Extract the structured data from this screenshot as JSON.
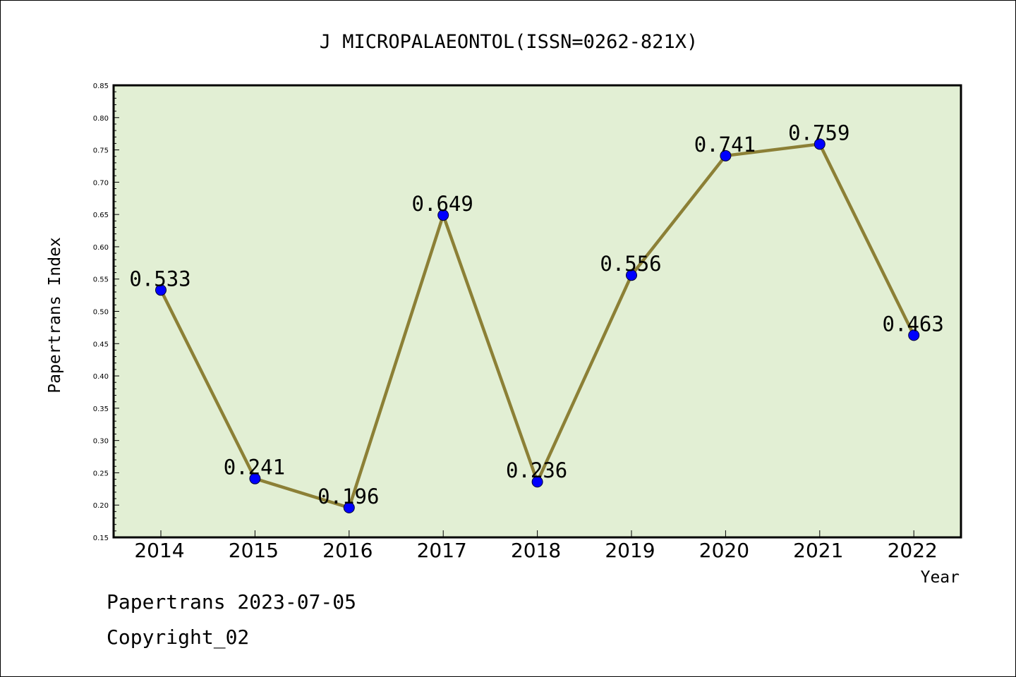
{
  "chart_data": {
    "type": "line",
    "title": "J MICROPALAEONTOL(ISSN=0262-821X)",
    "xlabel": "Year",
    "ylabel": "Papertrans Index",
    "categories": [
      "2014",
      "2015",
      "2016",
      "2017",
      "2018",
      "2019",
      "2020",
      "2021",
      "2022"
    ],
    "values": [
      0.533,
      0.241,
      0.196,
      0.649,
      0.236,
      0.556,
      0.741,
      0.759,
      0.463
    ],
    "data_labels": [
      "0.533",
      "0.241",
      "0.196",
      "0.649",
      "0.236",
      "0.556",
      "0.741",
      "0.759",
      "0.463"
    ],
    "ylim": [
      0.15,
      0.85
    ],
    "yticks": [
      "0.15",
      "0.20",
      "0.25",
      "0.30",
      "0.35",
      "0.40",
      "0.45",
      "0.50",
      "0.55",
      "0.60",
      "0.65",
      "0.70",
      "0.75",
      "0.80",
      "0.85"
    ],
    "grid": false,
    "legend": "none",
    "colors": {
      "plot_background": "#e2efd4",
      "line": "#8c8036",
      "marker": "#0000ff"
    }
  },
  "footer": {
    "date_text": "Papertrans 2023-07-05",
    "copyright_text": "Copyright_02"
  }
}
